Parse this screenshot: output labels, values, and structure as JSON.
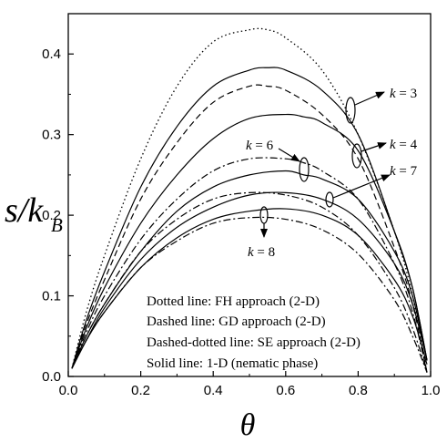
{
  "chart_data": {
    "type": "line",
    "title": "",
    "xlabel": "θ",
    "ylabel_main": "s/k",
    "ylabel_sub": "B",
    "xlim": [
      0.0,
      1.0
    ],
    "ylim": [
      0.0,
      0.45
    ],
    "x_ticks": [
      "0.0",
      "0.2",
      "0.4",
      "0.6",
      "0.8",
      "1.0"
    ],
    "y_ticks": [
      "0.0",
      "0.1",
      "0.2",
      "0.3",
      "0.4"
    ],
    "grid": false,
    "legend": [
      "Dotted line: FH approach (2-D)",
      "Dashed line: GD approach (2-D)",
      "Dashed-dotted line: SE approach (2-D)",
      "Solid line: 1-D (nematic phase)"
    ],
    "annotations": [
      {
        "text_prefix": "k",
        "text_suffix": " = 3"
      },
      {
        "text_prefix": "k",
        "text_suffix": " = 4"
      },
      {
        "text_prefix": "k",
        "text_suffix": " = 6"
      },
      {
        "text_prefix": "k",
        "text_suffix": " = 7"
      },
      {
        "text_prefix": "k",
        "text_suffix": " = 8"
      }
    ],
    "series": [
      {
        "style": "dotted",
        "k": 3,
        "x": [
          0.01,
          0.05,
          0.1,
          0.2,
          0.3,
          0.4,
          0.5,
          0.55,
          0.6,
          0.7,
          0.8,
          0.9,
          0.95,
          0.99
        ],
        "y": [
          0.01,
          0.08,
          0.15,
          0.27,
          0.36,
          0.415,
          0.43,
          0.43,
          0.42,
          0.38,
          0.3,
          0.18,
          0.1,
          0.005
        ]
      },
      {
        "style": "solid",
        "k": 3,
        "x": [
          0.01,
          0.05,
          0.1,
          0.2,
          0.3,
          0.4,
          0.5,
          0.55,
          0.6,
          0.7,
          0.8,
          0.9,
          0.95,
          0.99
        ],
        "y": [
          0.01,
          0.07,
          0.13,
          0.235,
          0.31,
          0.36,
          0.38,
          0.383,
          0.38,
          0.355,
          0.3,
          0.18,
          0.11,
          0.02
        ]
      },
      {
        "style": "dashed",
        "k": 3,
        "x": [
          0.01,
          0.05,
          0.1,
          0.2,
          0.3,
          0.4,
          0.5,
          0.55,
          0.6,
          0.7,
          0.8,
          0.9,
          0.95,
          0.99
        ],
        "y": [
          0.01,
          0.065,
          0.12,
          0.22,
          0.29,
          0.34,
          0.36,
          0.36,
          0.355,
          0.325,
          0.27,
          0.16,
          0.09,
          0.005
        ]
      },
      {
        "style": "solid",
        "k": 4,
        "x": [
          0.01,
          0.05,
          0.1,
          0.2,
          0.3,
          0.4,
          0.5,
          0.6,
          0.65,
          0.7,
          0.8,
          0.9,
          0.95,
          0.99
        ],
        "y": [
          0.01,
          0.06,
          0.11,
          0.19,
          0.25,
          0.295,
          0.32,
          0.325,
          0.322,
          0.315,
          0.28,
          0.18,
          0.11,
          0.02
        ]
      },
      {
        "style": "dashdot",
        "k": 6,
        "x": [
          0.01,
          0.05,
          0.1,
          0.2,
          0.3,
          0.4,
          0.5,
          0.6,
          0.65,
          0.7,
          0.8,
          0.9,
          0.95,
          0.99
        ],
        "y": [
          0.01,
          0.055,
          0.1,
          0.17,
          0.22,
          0.255,
          0.27,
          0.27,
          0.265,
          0.255,
          0.22,
          0.14,
          0.08,
          0.005
        ]
      },
      {
        "style": "solid",
        "k": 6,
        "x": [
          0.01,
          0.05,
          0.1,
          0.2,
          0.3,
          0.4,
          0.5,
          0.6,
          0.65,
          0.7,
          0.8,
          0.9,
          0.95,
          0.99
        ],
        "y": [
          0.01,
          0.05,
          0.09,
          0.155,
          0.205,
          0.235,
          0.25,
          0.255,
          0.25,
          0.245,
          0.22,
          0.155,
          0.1,
          0.02
        ]
      },
      {
        "style": "dashdot",
        "k": 7,
        "x": [
          0.01,
          0.05,
          0.1,
          0.2,
          0.3,
          0.4,
          0.5,
          0.6,
          0.7,
          0.8,
          0.9,
          0.95,
          0.99
        ],
        "y": [
          0.01,
          0.05,
          0.09,
          0.155,
          0.195,
          0.22,
          0.228,
          0.225,
          0.21,
          0.175,
          0.11,
          0.06,
          0.005
        ]
      },
      {
        "style": "solid",
        "k": 7,
        "x": [
          0.01,
          0.05,
          0.1,
          0.2,
          0.3,
          0.4,
          0.5,
          0.6,
          0.7,
          0.8,
          0.9,
          0.95,
          0.99
        ],
        "y": [
          0.01,
          0.045,
          0.085,
          0.145,
          0.185,
          0.21,
          0.225,
          0.228,
          0.22,
          0.195,
          0.14,
          0.09,
          0.02
        ]
      },
      {
        "style": "solid",
        "k": 8,
        "x": [
          0.01,
          0.05,
          0.1,
          0.2,
          0.3,
          0.4,
          0.5,
          0.6,
          0.7,
          0.8,
          0.9,
          0.95,
          0.99
        ],
        "y": [
          0.01,
          0.045,
          0.08,
          0.135,
          0.172,
          0.195,
          0.205,
          0.208,
          0.2,
          0.175,
          0.12,
          0.075,
          0.015
        ]
      },
      {
        "style": "dashdot",
        "k": 8,
        "x": [
          0.01,
          0.05,
          0.1,
          0.2,
          0.3,
          0.4,
          0.5,
          0.6,
          0.7,
          0.8,
          0.9,
          0.95,
          0.99
        ],
        "y": [
          0.01,
          0.045,
          0.08,
          0.135,
          0.168,
          0.19,
          0.197,
          0.195,
          0.182,
          0.152,
          0.095,
          0.05,
          0.005
        ]
      }
    ]
  }
}
